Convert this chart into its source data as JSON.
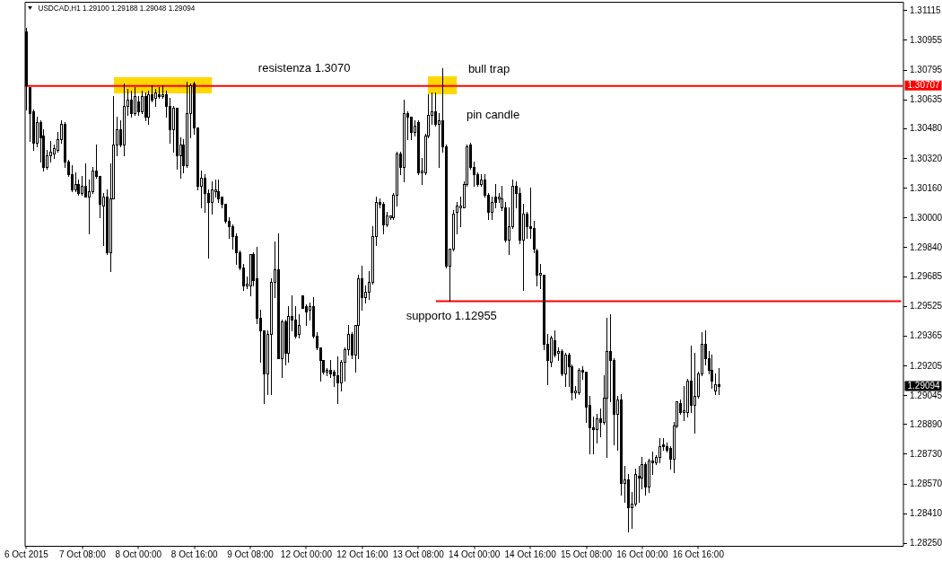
{
  "chart_data": {
    "type": "candlestick",
    "title": "USDCAD,H1 1.29100 1.29188 1.29048 1.29094",
    "categories": [
      "6 Oct 2015",
      null,
      null,
      null,
      null,
      null,
      null,
      null,
      null,
      null,
      null,
      null,
      null,
      null,
      null,
      null,
      "7 Oct 08:00",
      null,
      null,
      null,
      null,
      null,
      null,
      null,
      null,
      null,
      null,
      null,
      null,
      null,
      null,
      null,
      "8 Oct 00:00",
      null,
      null,
      null,
      null,
      null,
      null,
      null,
      null,
      null,
      null,
      null,
      null,
      null,
      null,
      null,
      "8 Oct 16:00",
      null,
      null,
      null,
      null,
      null,
      null,
      null,
      null,
      null,
      null,
      null,
      null,
      null,
      null,
      null,
      "9 Oct 08:00",
      null,
      null,
      null,
      null,
      null,
      null,
      null,
      null,
      null,
      null,
      null,
      null,
      null,
      null,
      null,
      "12 Oct 00:00",
      null,
      null,
      null,
      null,
      null,
      null,
      null,
      null,
      null,
      null,
      null,
      null,
      null,
      null,
      null,
      "12 Oct 16:00",
      null,
      null,
      null,
      null,
      null,
      null,
      null,
      null,
      null,
      null,
      null,
      null,
      null,
      null,
      null,
      "13 Oct 08:00",
      null,
      null,
      null,
      null,
      null,
      null,
      null,
      null,
      null,
      null,
      null,
      null,
      null,
      null,
      null,
      "14 Oct 00:00",
      null,
      null,
      null,
      null,
      null,
      null,
      null,
      null,
      null,
      null,
      null,
      null,
      null,
      null,
      null,
      "14 Oct 16:00",
      null,
      null,
      null,
      null,
      null,
      null,
      null,
      null,
      null,
      null,
      null,
      null,
      null,
      null,
      null,
      "15 Oct 08:00",
      null,
      null,
      null,
      null,
      null,
      null,
      null,
      null,
      null,
      null,
      null,
      null,
      null,
      null,
      null,
      "16 Oct 00:00",
      null,
      null,
      null,
      null,
      null,
      null,
      null,
      null,
      null,
      null,
      null,
      null,
      null,
      null,
      null,
      "16 Oct 16:00",
      null,
      null,
      null,
      null,
      null,
      null,
      null,
      null,
      null,
      null,
      null,
      null,
      null,
      null,
      null,
      null,
      null,
      null,
      null,
      null,
      null,
      null,
      null,
      null,
      null,
      null,
      null,
      null,
      null,
      null,
      null,
      null,
      null,
      null,
      null,
      null,
      null,
      null,
      null,
      null,
      null,
      null,
      null,
      null,
      null,
      null,
      null,
      null,
      null,
      null,
      null,
      null,
      null,
      null,
      null,
      null,
      null,
      null
    ],
    "ohlc": [
      [
        1.31,
        1.3102,
        1.3058,
        1.3071
      ],
      [
        1.307,
        1.307,
        1.3041,
        1.3056
      ],
      [
        1.3057,
        1.3058,
        1.3036,
        1.304
      ],
      [
        1.304,
        1.3054,
        1.3038,
        1.3051
      ],
      [
        1.3051,
        1.3052,
        1.303,
        1.3043
      ],
      [
        1.3044,
        1.3047,
        1.3025,
        1.3027
      ],
      [
        1.3027,
        1.3036,
        1.3026,
        1.3033
      ],
      [
        1.3033,
        1.3041,
        1.303,
        1.3035
      ],
      [
        1.3034,
        1.3039,
        1.3032,
        1.3037
      ],
      [
        1.3036,
        1.3046,
        1.3035,
        1.3042
      ],
      [
        1.3042,
        1.3052,
        1.304,
        1.305
      ],
      [
        1.305,
        1.3051,
        1.3027,
        1.303
      ],
      [
        1.303,
        1.3031,
        1.3022,
        1.3023
      ],
      [
        1.3023,
        1.3028,
        1.3014,
        1.3015
      ],
      [
        1.3015,
        1.3024,
        1.3014,
        1.3018
      ],
      [
        1.3018,
        1.302,
        1.3012,
        1.3013
      ],
      [
        1.3013,
        1.3022,
        1.3012,
        1.3017
      ],
      [
        1.3017,
        1.3029,
        1.3011,
        1.3011
      ],
      [
        1.3011,
        1.302,
        1.2991,
        1.3014
      ],
      [
        1.3014,
        1.3027,
        1.3013,
        1.3025
      ],
      [
        1.3025,
        1.3039,
        1.3021,
        1.3022
      ],
      [
        1.3022,
        1.3022,
        1.3,
        1.3007
      ],
      [
        1.3006,
        1.3013,
        1.2985,
        1.3011
      ],
      [
        1.3011,
        1.3015,
        1.298,
        1.2981
      ],
      [
        1.2981,
        1.3029,
        1.2971,
        1.301
      ],
      [
        1.301,
        1.3065,
        1.301,
        1.3039
      ],
      [
        1.3039,
        1.3054,
        1.3033,
        1.3047
      ],
      [
        1.3047,
        1.3052,
        1.3038,
        1.3039
      ],
      [
        1.3039,
        1.3072,
        1.3033,
        1.306
      ],
      [
        1.306,
        1.3069,
        1.3055,
        1.3063
      ],
      [
        1.3063,
        1.3068,
        1.3054,
        1.3056
      ],
      [
        1.3056,
        1.307,
        1.3055,
        1.3065
      ],
      [
        1.3062,
        1.3065,
        1.3055,
        1.3057
      ],
      [
        1.3057,
        1.3068,
        1.3056,
        1.3065
      ],
      [
        1.3065,
        1.3067,
        1.3052,
        1.3054
      ],
      [
        1.3054,
        1.3068,
        1.305,
        1.3066
      ],
      [
        1.3066,
        1.3071,
        1.3062,
        1.3063
      ],
      [
        1.3064,
        1.3069,
        1.306,
        1.3067
      ],
      [
        1.3066,
        1.307,
        1.3064,
        1.3065
      ],
      [
        1.3065,
        1.3071,
        1.3064,
        1.3066
      ],
      [
        1.3066,
        1.3068,
        1.3054,
        1.306
      ],
      [
        1.306,
        1.3064,
        1.304,
        1.3047
      ],
      [
        1.3047,
        1.306,
        1.3035,
        1.3059
      ],
      [
        1.3059,
        1.3059,
        1.3026,
        1.3033
      ],
      [
        1.3033,
        1.3043,
        1.3021,
        1.3039
      ],
      [
        1.3039,
        1.3042,
        1.3024,
        1.3028
      ],
      [
        1.3028,
        1.3073,
        1.3027,
        1.3056
      ],
      [
        1.3056,
        1.3072,
        1.3043,
        1.3071
      ],
      [
        1.3072,
        1.3073,
        1.3045,
        1.3048
      ],
      [
        1.3048,
        1.3048,
        1.3015,
        1.3017
      ],
      [
        1.3017,
        1.3025,
        1.3005,
        1.3021
      ],
      [
        1.3021,
        1.3023,
        1.3003,
        1.3013
      ],
      [
        1.3013,
        1.3015,
        1.2978,
        1.3008
      ],
      [
        1.3008,
        1.3019,
        1.3002,
        1.3015
      ],
      [
        1.3014,
        1.302,
        1.3011,
        1.3015
      ],
      [
        1.3014,
        1.302,
        1.3008,
        1.301
      ],
      [
        1.3011,
        1.3011,
        1.3005,
        1.3007
      ],
      [
        1.3007,
        1.3007,
        1.2997,
        1.2998
      ],
      [
        1.2998,
        1.3,
        1.2989,
        1.2995
      ],
      [
        1.2995,
        1.2996,
        1.2983,
        1.299
      ],
      [
        1.299,
        1.2991,
        1.2975,
        1.2981
      ],
      [
        1.2981,
        1.2982,
        1.2972,
        1.2973
      ],
      [
        1.2973,
        1.2975,
        1.2961,
        1.2963
      ],
      [
        1.2963,
        1.2968,
        1.2962,
        1.2964
      ],
      [
        1.2963,
        1.298,
        1.2958,
        1.298
      ],
      [
        1.298,
        1.2981,
        1.2963,
        1.2966
      ],
      [
        1.2967,
        1.2984,
        1.2943,
        1.2946
      ],
      [
        1.2946,
        1.295,
        1.2922,
        1.2939
      ],
      [
        1.2939,
        1.2939,
        1.29,
        1.2916
      ],
      [
        1.2916,
        1.2939,
        1.2905,
        1.2937
      ],
      [
        1.2937,
        1.2967,
        1.2905,
        1.2965
      ],
      [
        1.2965,
        1.2987,
        1.2957,
        1.2972
      ],
      [
        1.2972,
        1.2991,
        1.2924,
        1.2924
      ],
      [
        1.2924,
        1.2945,
        1.2914,
        1.2944
      ],
      [
        1.2944,
        1.2945,
        1.2921,
        1.2927
      ],
      [
        1.2927,
        1.2952,
        1.2922,
        1.2947
      ],
      [
        1.2947,
        1.2958,
        1.2939,
        1.2945
      ],
      [
        1.2945,
        1.2952,
        1.2935,
        1.2936
      ],
      [
        1.2937,
        1.2948,
        1.2935,
        1.2942
      ],
      [
        1.2958,
        1.2958,
        1.2951,
        1.2951
      ],
      [
        1.2952,
        1.2953,
        1.2942,
        1.2949
      ],
      [
        1.295,
        1.2954,
        1.2945,
        1.2952
      ],
      [
        1.2952,
        1.2957,
        1.2935,
        1.2936
      ],
      [
        1.2936,
        1.2938,
        1.2929,
        1.293
      ],
      [
        1.293,
        1.293,
        1.2912,
        1.2923
      ],
      [
        1.2923,
        1.2923,
        1.2916,
        1.2917
      ],
      [
        1.2917,
        1.2919,
        1.2915,
        1.2918
      ],
      [
        1.2918,
        1.2923,
        1.2914,
        1.2916
      ],
      [
        1.2917,
        1.2918,
        1.2909,
        1.2915
      ],
      [
        1.2915,
        1.2925,
        1.29,
        1.2911
      ],
      [
        1.2911,
        1.2923,
        1.2907,
        1.2922
      ],
      [
        1.2922,
        1.293,
        1.2912,
        1.2929
      ],
      [
        1.2929,
        1.2942,
        1.2926,
        1.2937
      ],
      [
        1.2937,
        1.2938,
        1.2924,
        1.2926
      ],
      [
        1.2926,
        1.2942,
        1.2917,
        1.2942
      ],
      [
        1.2942,
        1.2969,
        1.2924,
        1.2967
      ],
      [
        1.2967,
        1.2974,
        1.295,
        1.2957
      ],
      [
        1.2957,
        1.2963,
        1.2954,
        1.296
      ],
      [
        1.296,
        1.2971,
        1.2956,
        1.2965
      ],
      [
        1.2965,
        1.2995,
        1.2964,
        1.299
      ],
      [
        1.299,
        1.3011,
        1.2985,
        1.3008
      ],
      [
        1.3008,
        1.301,
        1.3005,
        1.3007
      ],
      [
        1.3007,
        1.3008,
        1.2991,
        1.2996
      ],
      [
        1.2996,
        1.3003,
        1.2995,
        1.3001
      ],
      [
        1.3,
        1.3001,
        1.2999,
        1.3001
      ],
      [
        1.3,
        1.3013,
        1.2999,
        1.3012
      ],
      [
        1.3012,
        1.3035,
        1.3006,
        1.3034
      ],
      [
        1.3034,
        1.3035,
        1.3023,
        1.3027
      ],
      [
        1.3027,
        1.3063,
        1.3019,
        1.3056
      ],
      [
        1.3056,
        1.3057,
        1.3042,
        1.3054
      ],
      [
        1.3054,
        1.3054,
        1.3042,
        1.3046
      ],
      [
        1.3046,
        1.3052,
        1.3044,
        1.3049
      ],
      [
        1.3051,
        1.3052,
        1.3023,
        1.3024
      ],
      [
        1.3024,
        1.3032,
        1.3018,
        1.3025
      ],
      [
        1.3024,
        1.3045,
        1.3023,
        1.3044
      ],
      [
        1.3044,
        1.3066,
        1.3043,
        1.3055
      ],
      [
        1.3055,
        1.3067,
        1.305,
        1.3057
      ],
      [
        1.3057,
        1.3067,
        1.3049,
        1.305
      ],
      [
        1.305,
        1.3056,
        1.3027,
        1.3052
      ],
      [
        1.3052,
        1.308,
        1.3035,
        1.3038
      ],
      [
        1.3038,
        1.3039,
        1.2973,
        1.2974
      ],
      [
        1.2974,
        1.2983,
        1.2955,
        1.2983
      ],
      [
        1.2983,
        1.3004,
        1.2982,
        1.3002
      ],
      [
        1.3003,
        1.3008,
        1.2991,
        1.3006
      ],
      [
        1.3005,
        1.3011,
        1.2995,
        1.3006
      ],
      [
        1.3005,
        1.3019,
        1.3005,
        1.3018
      ],
      [
        1.3018,
        1.3039,
        1.3017,
        1.3038
      ],
      [
        1.3039,
        1.304,
        1.3026,
        1.3027
      ],
      [
        1.3027,
        1.303,
        1.3017,
        1.3023
      ],
      [
        1.3023,
        1.3024,
        1.3017,
        1.3018
      ],
      [
        1.3018,
        1.3023,
        1.3017,
        1.302
      ],
      [
        1.302,
        1.3023,
        1.3011,
        1.3012
      ],
      [
        1.3012,
        1.3013,
        1.2999,
        1.3003
      ],
      [
        1.3003,
        1.3011,
        1.2999,
        1.3008
      ],
      [
        1.3011,
        1.3018,
        1.3005,
        1.3008
      ],
      [
        1.301,
        1.3013,
        1.3008,
        1.3011
      ],
      [
        1.3005,
        1.3017,
        1.3004,
        1.301
      ],
      [
        1.3005,
        1.3008,
        1.2987,
        1.2988
      ],
      [
        1.2988,
        1.3005,
        1.298,
        1.2995
      ],
      [
        1.2995,
        1.302,
        1.2994,
        1.3017
      ],
      [
        1.3017,
        1.3019,
        1.3005,
        1.3013
      ],
      [
        1.3013,
        1.3016,
        1.2986,
        1.2988
      ],
      [
        1.2988,
        1.3007,
        1.2961,
        1.3002
      ],
      [
        1.3002,
        1.3003,
        1.2989,
        1.2995
      ],
      [
        1.2995,
        1.3016,
        1.2989,
        1.2994
      ],
      [
        1.2994,
        1.2998,
        1.2981,
        1.2983
      ],
      [
        1.2982,
        1.2983,
        1.2963,
        1.2969
      ],
      [
        1.2969,
        1.2975,
        1.2962,
        1.297
      ],
      [
        1.2969,
        1.2969,
        1.2929,
        1.2932
      ],
      [
        1.2932,
        1.2937,
        1.291,
        1.2923
      ],
      [
        1.2922,
        1.2936,
        1.292,
        1.2935
      ],
      [
        1.2934,
        1.2939,
        1.2925,
        1.2926
      ],
      [
        1.2927,
        1.293,
        1.2923,
        1.2928
      ],
      [
        1.2928,
        1.2929,
        1.2915,
        1.2916
      ],
      [
        1.2916,
        1.2927,
        1.2909,
        1.2926
      ],
      [
        1.2926,
        1.2927,
        1.2909,
        1.292
      ],
      [
        1.292,
        1.2921,
        1.2902,
        1.2906
      ],
      [
        1.2906,
        1.2909,
        1.2903,
        1.2907
      ],
      [
        1.2906,
        1.2919,
        1.2905,
        1.2918
      ],
      [
        1.2918,
        1.292,
        1.2913,
        1.2917
      ],
      [
        1.2917,
        1.2917,
        1.289,
        1.2898
      ],
      [
        1.2899,
        1.2904,
        1.2873,
        1.2887
      ],
      [
        1.2887,
        1.2893,
        1.2873,
        1.2886
      ],
      [
        1.2886,
        1.2894,
        1.2879,
        1.2892
      ],
      [
        1.2892,
        1.2897,
        1.2882,
        1.289
      ],
      [
        1.289,
        1.2915,
        1.2889,
        1.2903
      ],
      [
        1.2903,
        1.2946,
        1.2871,
        1.2928
      ],
      [
        1.2928,
        1.2948,
        1.2901,
        1.2923
      ],
      [
        1.2923,
        1.2924,
        1.2878,
        1.2894
      ],
      [
        1.2894,
        1.2904,
        1.2875,
        1.2902
      ],
      [
        1.2902,
        1.2905,
        1.2851,
        1.2857
      ],
      [
        1.2857,
        1.2866,
        1.2847,
        1.2859
      ],
      [
        1.2859,
        1.2862,
        1.2831,
        1.2844
      ],
      [
        1.2844,
        1.2852,
        1.2833,
        1.2846
      ],
      [
        1.2846,
        1.2865,
        1.2845,
        1.2862
      ],
      [
        1.2861,
        1.2866,
        1.2847,
        1.286
      ],
      [
        1.286,
        1.2871,
        1.2854,
        1.2867
      ],
      [
        1.2867,
        1.2868,
        1.2851,
        1.2855
      ],
      [
        1.2855,
        1.287,
        1.2852,
        1.2869
      ],
      [
        1.2869,
        1.2874,
        1.2862,
        1.2868
      ],
      [
        1.2868,
        1.2872,
        1.2867,
        1.2871
      ],
      [
        1.2871,
        1.2881,
        1.2868,
        1.2877
      ],
      [
        1.2878,
        1.2881,
        1.2875,
        1.2877
      ],
      [
        1.2877,
        1.2879,
        1.2874,
        1.2875
      ],
      [
        1.2876,
        1.2877,
        1.2865,
        1.287
      ],
      [
        1.287,
        1.289,
        1.2863,
        1.2888
      ],
      [
        1.2888,
        1.2901,
        1.2887,
        1.2901
      ],
      [
        1.29,
        1.2902,
        1.2894,
        1.2895
      ],
      [
        1.2895,
        1.2909,
        1.2891,
        1.2896
      ],
      [
        1.2895,
        1.2913,
        1.2893,
        1.2912
      ],
      [
        1.2912,
        1.2931,
        1.2895,
        1.2899
      ],
      [
        1.2899,
        1.2927,
        1.2884,
        1.2904
      ],
      [
        1.2904,
        1.2917,
        1.2903,
        1.2916
      ],
      [
        1.2916,
        1.2938,
        1.2915,
        1.2932
      ],
      [
        1.2932,
        1.2939,
        1.2921,
        1.2924
      ],
      [
        1.2924,
        1.2928,
        1.2916,
        1.2918
      ],
      [
        1.2918,
        1.2926,
        1.2908,
        1.2912
      ],
      [
        1.2907,
        1.2916,
        1.2905,
        1.291
      ],
      [
        1.291,
        1.29188,
        1.29048,
        1.29094
      ],
      null,
      null,
      null,
      null,
      null,
      null,
      null,
      null,
      null,
      null,
      null,
      null,
      null,
      null,
      null,
      null,
      null,
      null,
      null,
      null,
      null,
      null,
      null,
      null,
      null,
      null,
      null,
      null,
      null,
      null,
      null,
      null,
      null,
      null,
      null,
      null,
      null,
      null,
      null,
      null,
      null,
      null,
      null,
      null,
      null,
      null,
      null,
      null,
      null,
      null,
      null,
      null
    ],
    "ylim": [
      1.28235,
      1.3116
    ],
    "yticks": [
      {
        "value": 1.2825,
        "label": "1.28250"
      },
      {
        "value": 1.2841,
        "label": "1.28410"
      },
      {
        "value": 1.2857,
        "label": "1.28570"
      },
      {
        "value": 1.2873,
        "label": "1.28730"
      },
      {
        "value": 1.2889,
        "label": "1.28890"
      },
      1.29045,
      1.29205,
      1.29365,
      1.29525,
      1.29685,
      {
        "value": 1.2984,
        "label": "1.29840"
      },
      {
        "value": 1.3,
        "label": "1.30000"
      },
      {
        "value": 1.3016,
        "label": "1.30160"
      },
      {
        "value": 1.3032,
        "label": "1.30320"
      },
      {
        "value": 1.3048,
        "label": "1.30480"
      },
      1.30635,
      1.30795,
      1.30955,
      1.31115
    ],
    "ref_lines": [
      {
        "axis": "y",
        "value": 1.30707,
        "label": "1.30707",
        "color": "#ff0000"
      }
    ],
    "series": [
      {
        "type": "line",
        "name": "supporto 1.12955",
        "color": "#ff0000",
        "values": [
          null,
          null,
          null,
          null,
          null,
          null,
          null,
          null,
          null,
          null,
          null,
          null,
          null,
          null,
          null,
          null,
          null,
          null,
          null,
          null,
          null,
          null,
          null,
          null,
          null,
          null,
          null,
          null,
          null,
          null,
          null,
          null,
          null,
          null,
          null,
          null,
          null,
          null,
          null,
          null,
          null,
          null,
          null,
          null,
          null,
          null,
          null,
          null,
          null,
          null,
          null,
          null,
          null,
          null,
          null,
          null,
          null,
          null,
          null,
          null,
          null,
          null,
          null,
          null,
          null,
          null,
          null,
          null,
          null,
          null,
          null,
          null,
          null,
          null,
          null,
          null,
          null,
          null,
          null,
          null,
          null,
          null,
          null,
          null,
          null,
          null,
          null,
          null,
          null,
          null,
          null,
          null,
          null,
          null,
          null,
          null,
          null,
          null,
          null,
          null,
          null,
          null,
          null,
          null,
          null,
          null,
          null,
          null,
          null,
          null,
          null,
          null,
          null,
          null,
          null,
          null,
          null,
          1.2955,
          1.2955,
          1.2955,
          1.2955,
          1.2955,
          1.2955,
          1.2955,
          1.2955,
          1.2955,
          1.2955,
          1.2955,
          1.2955,
          1.2955,
          1.2955,
          1.2955,
          1.2955,
          1.2955,
          1.2955,
          1.2955,
          1.2955,
          1.2955,
          1.2955,
          1.2955,
          1.2955,
          1.2955,
          1.2955,
          1.2955,
          1.2955,
          1.2955,
          1.2955,
          1.2955,
          1.2955,
          1.2955,
          1.2955,
          1.2955,
          1.2955,
          1.2955,
          1.2955,
          1.2955,
          1.2955,
          1.2955,
          1.2955,
          1.2955,
          1.2955,
          1.2955,
          1.2955,
          1.2955,
          1.2955,
          1.2955,
          1.2955,
          1.2955,
          1.2955,
          1.2955,
          1.2955,
          1.2955,
          1.2955,
          1.2955,
          1.2955,
          1.2955,
          1.2955,
          1.2955,
          1.2955,
          1.2955,
          1.2955,
          1.2955,
          1.2955,
          1.2955,
          1.2955,
          1.2955,
          1.2955,
          1.2955,
          1.2955,
          1.2955,
          1.2955,
          1.2955,
          1.2955,
          1.2955,
          1.2955,
          1.2955,
          1.2955,
          1.2955,
          1.2955,
          1.2955,
          1.2955,
          1.2955,
          1.2955,
          1.2955,
          1.2955,
          1.2955,
          1.2955,
          1.2955,
          1.2955,
          1.2955,
          1.2955,
          1.2955,
          1.2955,
          1.2955,
          1.2955,
          1.2955,
          1.2955,
          1.2955,
          1.2955,
          1.2955,
          1.2955,
          1.2955,
          1.2955,
          1.2955,
          1.2955,
          1.2955,
          1.2955,
          1.2955,
          1.2955,
          1.2955,
          1.2955,
          1.2955,
          1.2955,
          1.2955,
          1.2955,
          1.2955,
          1.2955,
          1.2955,
          1.2955,
          1.2955,
          1.2955,
          1.2955,
          1.2955,
          1.2955,
          1.2955,
          1.2955,
          1.2955,
          1.2955,
          1.2955,
          1.2955,
          1.2955
        ]
      }
    ],
    "annotations": [
      "resistenza 1.3070",
      "bull trap",
      "pin candle",
      "1.29094"
    ]
  }
}
